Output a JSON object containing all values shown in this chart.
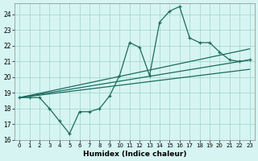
{
  "xlabel": "Humidex (Indice chaleur)",
  "bg_color": "#d6f5f2",
  "grid_color": "#a8d8d0",
  "line_color": "#1a6b5e",
  "xlim": [
    -0.5,
    23.5
  ],
  "ylim": [
    16,
    24.7
  ],
  "yticks": [
    16,
    17,
    18,
    19,
    20,
    21,
    22,
    23,
    24
  ],
  "xticks": [
    0,
    1,
    2,
    3,
    4,
    5,
    6,
    7,
    8,
    9,
    10,
    11,
    12,
    13,
    14,
    15,
    16,
    17,
    18,
    19,
    20,
    21,
    22,
    23
  ],
  "series": [
    {
      "x": [
        0,
        1,
        2,
        3,
        4,
        5,
        6,
        7,
        8,
        9,
        10,
        11,
        12,
        13,
        14,
        15,
        16,
        17,
        18,
        19,
        20,
        21,
        22,
        23
      ],
      "y": [
        18.7,
        18.7,
        18.7,
        18.0,
        17.2,
        16.4,
        17.8,
        17.8,
        18.0,
        18.8,
        20.1,
        22.2,
        21.9,
        20.1,
        23.5,
        24.2,
        24.5,
        22.5,
        22.2,
        22.2,
        21.6,
        21.1,
        21.0,
        21.1
      ],
      "marker": true
    },
    {
      "x": [
        0,
        23
      ],
      "y": [
        18.7,
        21.8
      ],
      "marker": false
    },
    {
      "x": [
        0,
        23
      ],
      "y": [
        18.7,
        21.1
      ],
      "marker": false
    },
    {
      "x": [
        0,
        23
      ],
      "y": [
        18.7,
        20.5
      ],
      "marker": false
    }
  ]
}
